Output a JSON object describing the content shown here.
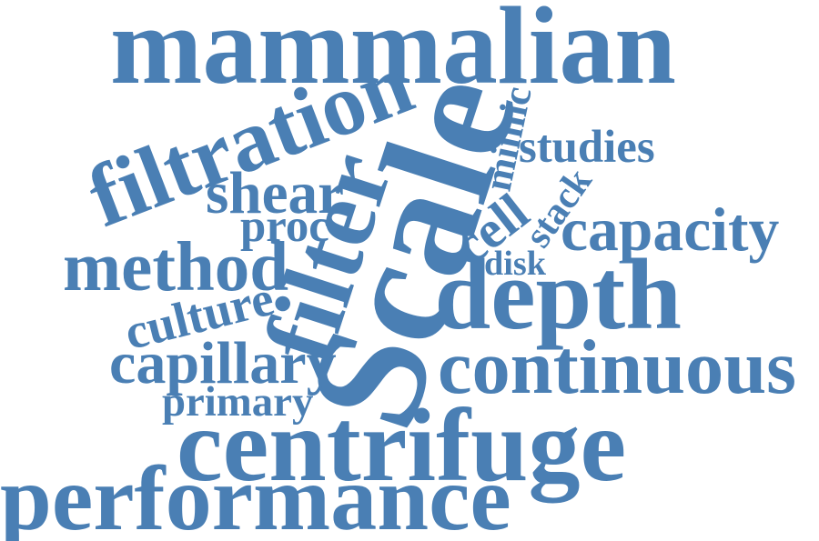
{
  "word_cloud": {
    "color": "#4a7fb4",
    "words": [
      {
        "id": "mammalian",
        "text": "mammalian"
      },
      {
        "id": "filtration",
        "text": "filtration"
      },
      {
        "id": "scale",
        "text": "Scale"
      },
      {
        "id": "mimic",
        "text": "mimic"
      },
      {
        "id": "studies",
        "text": "studies"
      },
      {
        "id": "shear",
        "text": "shear"
      },
      {
        "id": "stack",
        "text": "stack"
      },
      {
        "id": "filter",
        "text": "filter"
      },
      {
        "id": "proc",
        "text": "proc"
      },
      {
        "id": "cell",
        "text": "cell"
      },
      {
        "id": "capacity",
        "text": "capacity"
      },
      {
        "id": "method",
        "text": "method"
      },
      {
        "id": "disk",
        "text": "disk"
      },
      {
        "id": "culture",
        "text": "culture"
      },
      {
        "id": "depth",
        "text": "depth"
      },
      {
        "id": "capillary",
        "text": "capillary"
      },
      {
        "id": "continuous",
        "text": "continuous"
      },
      {
        "id": "primary",
        "text": "primary"
      },
      {
        "id": "centrifuge",
        "text": "centrifuge"
      },
      {
        "id": "performance",
        "text": "performance"
      }
    ]
  }
}
